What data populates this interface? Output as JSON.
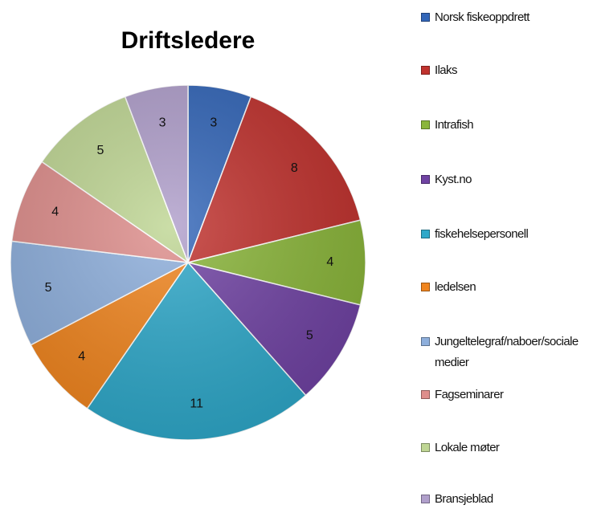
{
  "chart_data": {
    "type": "pie",
    "title": "Driftsledere",
    "categories": [
      "Norsk fiskeoppdrett",
      "Ilaks",
      "Intrafish",
      "Kyst.no",
      "fiskehelsepersonell",
      "ledelsen",
      "Jungeltelegraf/naboer/sociale medier",
      "Fagseminarer",
      "Lokale møter",
      "Bransjeblad"
    ],
    "values": [
      3,
      8,
      4,
      5,
      11,
      4,
      5,
      4,
      5,
      3
    ],
    "colors": [
      "#3366b8",
      "#c0322e",
      "#8ab53a",
      "#7043a3",
      "#2fa8c9",
      "#f0851f",
      "#8eafdc",
      "#de8e8c",
      "#bfd694",
      "#b09fcb"
    ],
    "legend": "right"
  }
}
